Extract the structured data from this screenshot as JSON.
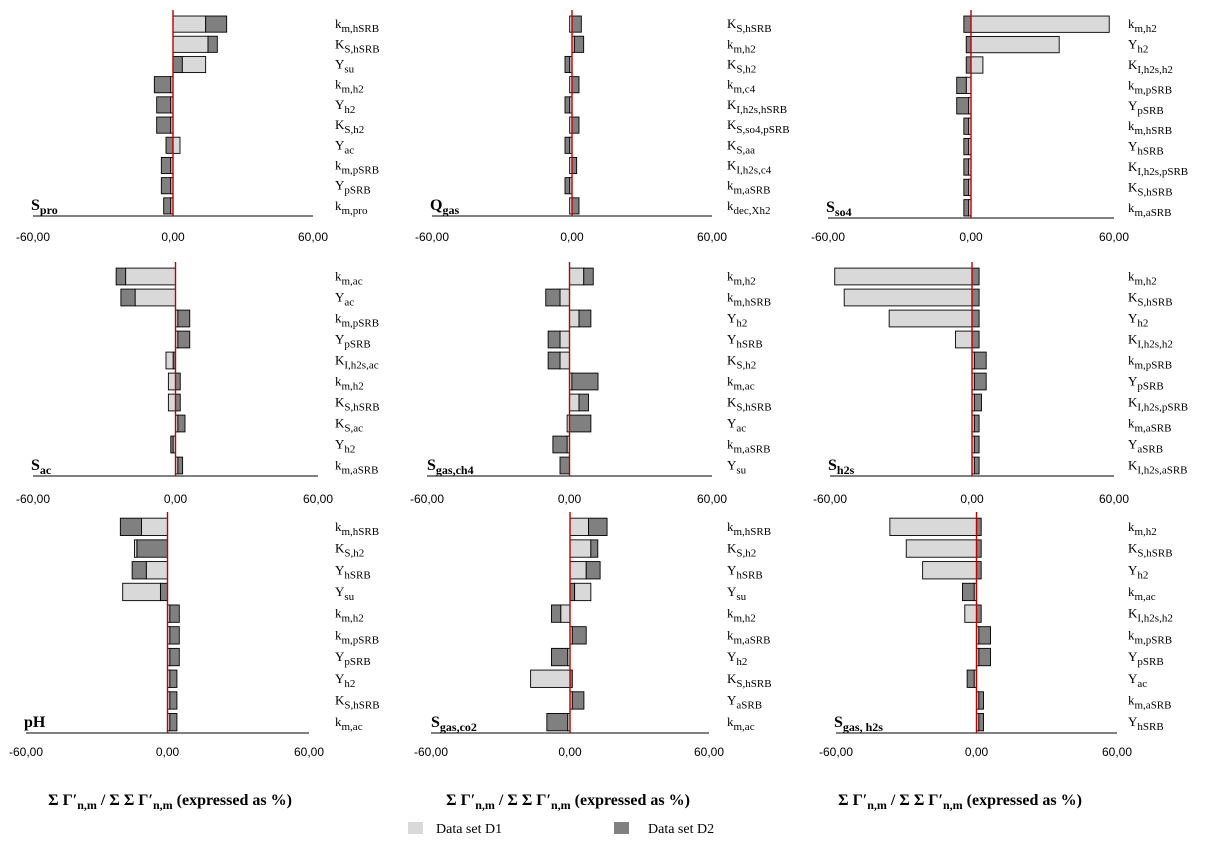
{
  "colors": {
    "d1": "#d9d9d9",
    "d2": "#808080",
    "zero_line": "#c00000",
    "axis": "#000000"
  },
  "legend": {
    "d1_label": "Data set D1",
    "d2_label": "Data set D2"
  },
  "x_axis_label": "Σ Γ′n,m / Σ Σ Γ′n,m (expressed as %)",
  "chart_data": [
    {
      "type": "bar",
      "orientation": "horizontal-stacked",
      "title": "Spro",
      "title_main": "S",
      "title_sub": "pro",
      "xlim": [
        -60,
        60
      ],
      "xticks": [
        "-60,00",
        "0,00",
        "60,00"
      ],
      "categories": [
        {
          "m": "k",
          "s": "m,hSRB"
        },
        {
          "m": "K",
          "s": "S,hSRB"
        },
        {
          "m": "Y",
          "s": "su"
        },
        {
          "m": "k",
          "s": "m,h2"
        },
        {
          "m": "Y",
          "s": "h2"
        },
        {
          "m": "K",
          "s": "S,h2"
        },
        {
          "m": "Y",
          "s": "ac"
        },
        {
          "m": "k",
          "s": "m,pSRB"
        },
        {
          "m": "Y",
          "s": "pSRB"
        },
        {
          "m": "k",
          "s": "m,pro"
        }
      ],
      "series": [
        {
          "name": "Data set D1",
          "values": [
            14,
            15,
            14,
            -1,
            -1,
            -1,
            3,
            -1,
            -1,
            -1
          ]
        },
        {
          "name": "Data set D2",
          "values": [
            23,
            19,
            4,
            -8,
            -7,
            -7,
            -3,
            -5,
            -5,
            -4
          ]
        }
      ]
    },
    {
      "type": "bar",
      "orientation": "horizontal-stacked",
      "title": "Qgas",
      "title_main": "Q",
      "title_sub": "gas",
      "xlim": [
        -60,
        60
      ],
      "xticks": [
        "-60,00",
        "0,00",
        "60,00"
      ],
      "categories": [
        {
          "m": "K",
          "s": "S,hSRB"
        },
        {
          "m": "k",
          "s": "m,h2"
        },
        {
          "m": "K",
          "s": "S,h2"
        },
        {
          "m": "k",
          "s": "m,c4"
        },
        {
          "m": "K",
          "s": "I,h2s,hSRB"
        },
        {
          "m": "K",
          "s": "S,so4,pSRB"
        },
        {
          "m": "K",
          "s": "S,aa"
        },
        {
          "m": "K",
          "s": "I,h2s,c4"
        },
        {
          "m": "k",
          "s": "m,aSRB"
        },
        {
          "m": "k",
          "s": "dec,Xh2"
        }
      ],
      "series": [
        {
          "name": "Data set D1",
          "values": [
            -1,
            1,
            -1,
            -1,
            -1,
            -1,
            -1,
            -1,
            -1,
            -1
          ]
        },
        {
          "name": "Data set D2",
          "values": [
            4,
            5,
            -3,
            3,
            -3,
            3,
            -3,
            2,
            -3,
            3
          ]
        }
      ]
    },
    {
      "type": "bar",
      "orientation": "horizontal-stacked",
      "title": "Sso4",
      "title_main": "S",
      "title_sub": "so4",
      "xlim": [
        -60,
        60
      ],
      "xticks": [
        "-60,00",
        "0,00",
        "60,00"
      ],
      "categories": [
        {
          "m": "k",
          "s": "m,h2"
        },
        {
          "m": "Y",
          "s": "h2"
        },
        {
          "m": "K",
          "s": "I,h2s,h2"
        },
        {
          "m": "k",
          "s": "m,pSRB"
        },
        {
          "m": "Y",
          "s": "pSRB"
        },
        {
          "m": "k",
          "s": "m,hSRB"
        },
        {
          "m": "Y",
          "s": "hSRB"
        },
        {
          "m": "K",
          "s": "I,h2s,pSRB"
        },
        {
          "m": "K",
          "s": "S,hSRB"
        },
        {
          "m": "k",
          "s": "m,aSRB"
        }
      ],
      "series": [
        {
          "name": "Data set D1",
          "values": [
            58,
            37,
            5,
            -2,
            -1,
            -1,
            -1,
            -1,
            -1,
            -1
          ]
        },
        {
          "name": "Data set D2",
          "values": [
            -3,
            -2,
            -2,
            -6,
            -6,
            -3,
            -3,
            -3,
            -3,
            -3
          ]
        }
      ]
    },
    {
      "type": "bar",
      "orientation": "horizontal-stacked",
      "title": "Sac",
      "title_main": "S",
      "title_sub": "ac",
      "xlim": [
        -60,
        60
      ],
      "xticks": [
        "-60,00",
        "0,00",
        "60,00"
      ],
      "categories": [
        {
          "m": "k",
          "s": "m,ac"
        },
        {
          "m": "Y",
          "s": "ac"
        },
        {
          "m": "k",
          "s": "m,pSRB"
        },
        {
          "m": "Y",
          "s": "pSRB"
        },
        {
          "m": "K",
          "s": "I,h2s,ac"
        },
        {
          "m": "k",
          "s": "m,h2"
        },
        {
          "m": "K",
          "s": "S,hSRB"
        },
        {
          "m": "K",
          "s": "S,ac"
        },
        {
          "m": "Y",
          "s": "h2"
        },
        {
          "m": "k",
          "s": "m,aSRB"
        }
      ],
      "series": [
        {
          "name": "Data set D1",
          "values": [
            -21,
            -17,
            1,
            1,
            -4,
            -3,
            -3,
            1,
            -1,
            1
          ]
        },
        {
          "name": "Data set D2",
          "values": [
            -25,
            -23,
            6,
            6,
            -1,
            2,
            2,
            4,
            -2,
            3
          ]
        }
      ]
    },
    {
      "type": "bar",
      "orientation": "horizontal-stacked",
      "title": "Sgas,ch4",
      "title_main": "S",
      "title_sub": "gas,ch4",
      "xlim": [
        -60,
        60
      ],
      "xticks": [
        "-60,00",
        "0,00",
        "60,00"
      ],
      "categories": [
        {
          "m": "k",
          "s": "m,h2"
        },
        {
          "m": "k",
          "s": "m,hSRB"
        },
        {
          "m": "Y",
          "s": "h2"
        },
        {
          "m": "Y",
          "s": "hSRB"
        },
        {
          "m": "K",
          "s": "S,h2"
        },
        {
          "m": "k",
          "s": "m,ac"
        },
        {
          "m": "K",
          "s": "S,hSRB"
        },
        {
          "m": "Y",
          "s": "ac"
        },
        {
          "m": "k",
          "s": "m,aSRB"
        },
        {
          "m": "Y",
          "s": "su"
        }
      ],
      "series": [
        {
          "name": "Data set D1",
          "values": [
            6,
            -4,
            4,
            -4,
            -4,
            1,
            4,
            -1,
            -1,
            -4
          ]
        },
        {
          "name": "Data set D2",
          "values": [
            10,
            -10,
            9,
            -9,
            -9,
            12,
            8,
            9,
            -7,
            -4
          ]
        }
      ]
    },
    {
      "type": "bar",
      "orientation": "horizontal-stacked",
      "title": "Sh2s",
      "title_main": "S",
      "title_sub": "h2s",
      "xlim": [
        -60,
        60
      ],
      "xticks": [
        "-60,00",
        "0,00",
        "60,00"
      ],
      "categories": [
        {
          "m": "k",
          "s": "m,h2"
        },
        {
          "m": "K",
          "s": "S,hSRB"
        },
        {
          "m": "Y",
          "s": "h2"
        },
        {
          "m": "K",
          "s": "I,h2s,h2"
        },
        {
          "m": "k",
          "s": "m,pSRB"
        },
        {
          "m": "Y",
          "s": "pSRB"
        },
        {
          "m": "K",
          "s": "I,h2s,pSRB"
        },
        {
          "m": "k",
          "s": "m,aSRB"
        },
        {
          "m": "Y",
          "s": "aSRB"
        },
        {
          "m": "K",
          "s": "I,h2s,aSRB"
        }
      ],
      "series": [
        {
          "name": "Data set D1",
          "values": [
            -58,
            -54,
            -35,
            -7,
            1,
            1,
            1,
            1,
            1,
            1
          ]
        },
        {
          "name": "Data set D2",
          "values": [
            3,
            3,
            3,
            3,
            6,
            6,
            4,
            3,
            3,
            3
          ]
        }
      ]
    },
    {
      "type": "bar",
      "orientation": "horizontal-stacked",
      "title": "pH",
      "title_main": "pH",
      "title_sub": "",
      "xlim": [
        -60,
        60
      ],
      "xticks": [
        "-60,00",
        "0,00",
        "60,00"
      ],
      "categories": [
        {
          "m": "k",
          "s": "m,hSRB"
        },
        {
          "m": "K",
          "s": "S,h2"
        },
        {
          "m": "Y",
          "s": "hSRB"
        },
        {
          "m": "Y",
          "s": "su"
        },
        {
          "m": "k",
          "s": "m,h2"
        },
        {
          "m": "k",
          "s": "m,pSRB"
        },
        {
          "m": "Y",
          "s": "pSRB"
        },
        {
          "m": "Y",
          "s": "h2"
        },
        {
          "m": "K",
          "s": "S,hSRB"
        },
        {
          "m": "k",
          "s": "m,ac"
        }
      ],
      "series": [
        {
          "name": "Data set D1",
          "values": [
            -11,
            -14,
            -9,
            -19,
            1,
            1,
            1,
            1,
            1,
            1
          ]
        },
        {
          "name": "Data set D2",
          "values": [
            -20,
            -13,
            -15,
            -3,
            5,
            5,
            5,
            4,
            4,
            4
          ]
        }
      ]
    },
    {
      "type": "bar",
      "orientation": "horizontal-stacked",
      "title": "Sgas,co2",
      "title_main": "S",
      "title_sub": "gas,co2",
      "xlim": [
        -60,
        60
      ],
      "xticks": [
        "-60,00",
        "0,00",
        "60,00"
      ],
      "categories": [
        {
          "m": "k",
          "s": "m,hSRB"
        },
        {
          "m": "K",
          "s": "S,h2"
        },
        {
          "m": "Y",
          "s": "hSRB"
        },
        {
          "m": "Y",
          "s": "su"
        },
        {
          "m": "k",
          "s": "m,h2"
        },
        {
          "m": "k",
          "s": "m,aSRB"
        },
        {
          "m": "Y",
          "s": "h2"
        },
        {
          "m": "K",
          "s": "S,hSRB"
        },
        {
          "m": "Y",
          "s": "aSRB"
        },
        {
          "m": "k",
          "s": "m,ac"
        }
      ],
      "series": [
        {
          "name": "Data set D1",
          "values": [
            8,
            9,
            7,
            9,
            -4,
            1,
            -1,
            -17,
            1,
            -1
          ]
        },
        {
          "name": "Data set D2",
          "values": [
            16,
            12,
            13,
            2,
            -8,
            7,
            -8,
            1,
            6,
            -10
          ]
        }
      ]
    },
    {
      "type": "bar",
      "orientation": "horizontal-stacked",
      "title": "Sgas, h2s",
      "title_main": "S",
      "title_sub": "gas, h2s",
      "xlim": [
        -60,
        60
      ],
      "xticks": [
        "-60,00",
        "0,00",
        "60,00"
      ],
      "categories": [
        {
          "m": "k",
          "s": "m,h2"
        },
        {
          "m": "K",
          "s": "S,hSRB"
        },
        {
          "m": "Y",
          "s": "h2"
        },
        {
          "m": "k",
          "s": "m,ac"
        },
        {
          "m": "K",
          "s": "I,h2s,h2"
        },
        {
          "m": "k",
          "s": "m,pSRB"
        },
        {
          "m": "Y",
          "s": "pSRB"
        },
        {
          "m": "Y",
          "s": "ac"
        },
        {
          "m": "k",
          "s": "m,aSRB"
        },
        {
          "m": "Y",
          "s": "hSRB"
        }
      ],
      "series": [
        {
          "name": "Data set D1",
          "values": [
            -37,
            -30,
            -23,
            -1,
            -5,
            1,
            1,
            -1,
            1,
            1
          ]
        },
        {
          "name": "Data set D2",
          "values": [
            2,
            2,
            2,
            -6,
            2,
            6,
            6,
            -4,
            3,
            3
          ]
        }
      ]
    }
  ]
}
